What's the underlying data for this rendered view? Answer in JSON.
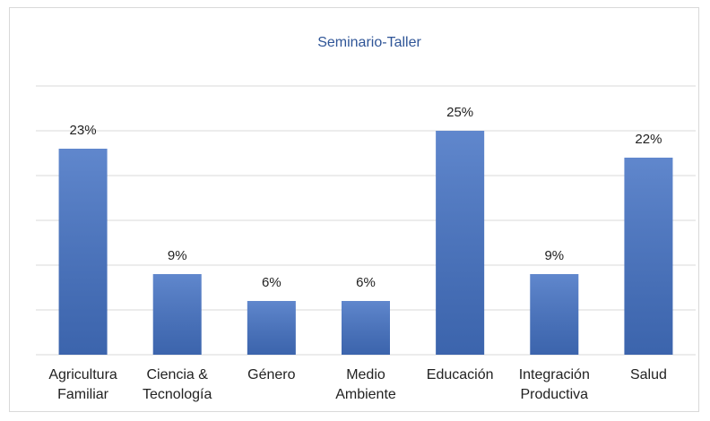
{
  "chart_data": {
    "type": "bar",
    "title": "Seminario-Taller",
    "categories": [
      "Agricultura Familiar",
      "Ciencia & Tecnología",
      "Género",
      "Medio Ambiente",
      "Educación",
      "Integración Productiva",
      "Salud"
    ],
    "values": [
      23,
      9,
      6,
      6,
      25,
      9,
      22
    ],
    "value_labels": [
      "23%",
      "9%",
      "6%",
      "6%",
      "25%",
      "9%",
      "22%"
    ],
    "color": "#4472c4",
    "ylim": [
      0,
      30
    ],
    "yticks": [
      0,
      5,
      10,
      15,
      20,
      25,
      30
    ],
    "grid": true
  }
}
